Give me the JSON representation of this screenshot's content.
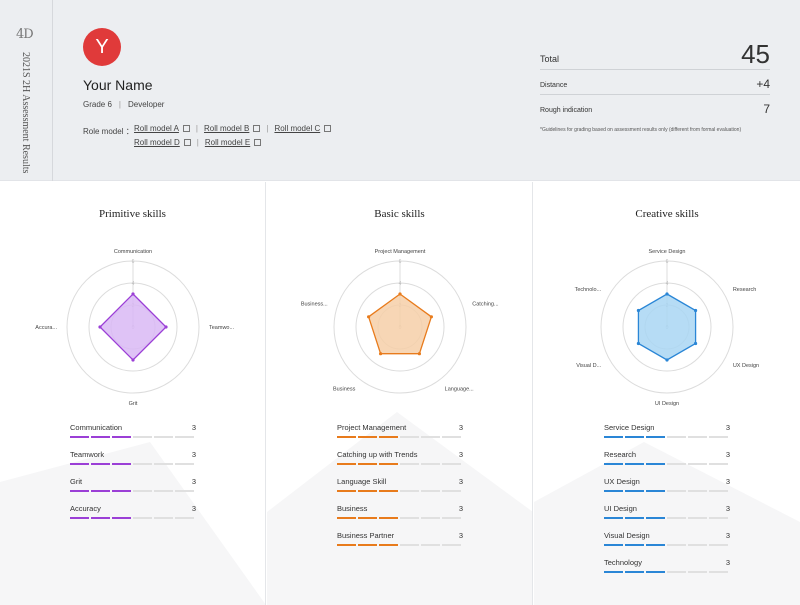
{
  "side": {
    "logo": "4D",
    "title": "2021S 2H Assessment Results"
  },
  "profile": {
    "avatar_letter": "Y",
    "name": "Your Name",
    "grade": "Grade 6",
    "role": "Developer",
    "role_model_label": "Role model ：",
    "role_models": [
      "Roll model A",
      "Roll model B",
      "Roll model C",
      "Roll model D",
      "Roll model E"
    ]
  },
  "score": {
    "total_label": "Total",
    "total_value": "45",
    "distance_label": "Distance",
    "distance_value": "+4",
    "rough_label": "Rough indication",
    "rough_value": "7",
    "note": "*Guidelines for grading based on assessment results only (different from formal evaluation)"
  },
  "panels": [
    {
      "title": "Primitive skills",
      "color": "#9b3fd6",
      "fill": "#d9b8f5",
      "axes": [
        "Communication",
        "Teamwo...",
        "Grit",
        "Accura..."
      ],
      "values": [
        3,
        3,
        3,
        3
      ],
      "skills": [
        {
          "name": "Communication",
          "value": 3
        },
        {
          "name": "Teamwork",
          "value": 3
        },
        {
          "name": "Grit",
          "value": 3
        },
        {
          "name": "Accuracy",
          "value": 3
        }
      ]
    },
    {
      "title": "Basic skills",
      "color": "#e87b1c",
      "fill": "#f6cfa8",
      "axes": [
        "Project Management",
        "Catching...",
        "Language...",
        "Business",
        "Business..."
      ],
      "values": [
        3,
        3,
        3,
        3,
        3
      ],
      "skills": [
        {
          "name": "Project Management",
          "value": 3
        },
        {
          "name": "Catching up with Trends",
          "value": 3
        },
        {
          "name": "Language Skill",
          "value": 3
        },
        {
          "name": "Business",
          "value": 3
        },
        {
          "name": "Business Partner",
          "value": 3
        }
      ]
    },
    {
      "title": "Creative skills",
      "color": "#2a86d6",
      "fill": "#a9d6f3",
      "axes": [
        "Service Design",
        "Research",
        "UX Design",
        "UI Design",
        "Visual D...",
        "Technolo..."
      ],
      "values": [
        3,
        3,
        3,
        3,
        3,
        3
      ],
      "skills": [
        {
          "name": "Service Design",
          "value": 3
        },
        {
          "name": "Research",
          "value": 3
        },
        {
          "name": "UX Design",
          "value": 3
        },
        {
          "name": "UI Design",
          "value": 3
        },
        {
          "name": "Visual Design",
          "value": 3
        },
        {
          "name": "Technology",
          "value": 3
        }
      ]
    }
  ],
  "scale": {
    "max": 6,
    "ticks": [
      "0",
      "2",
      "4",
      "6"
    ]
  }
}
